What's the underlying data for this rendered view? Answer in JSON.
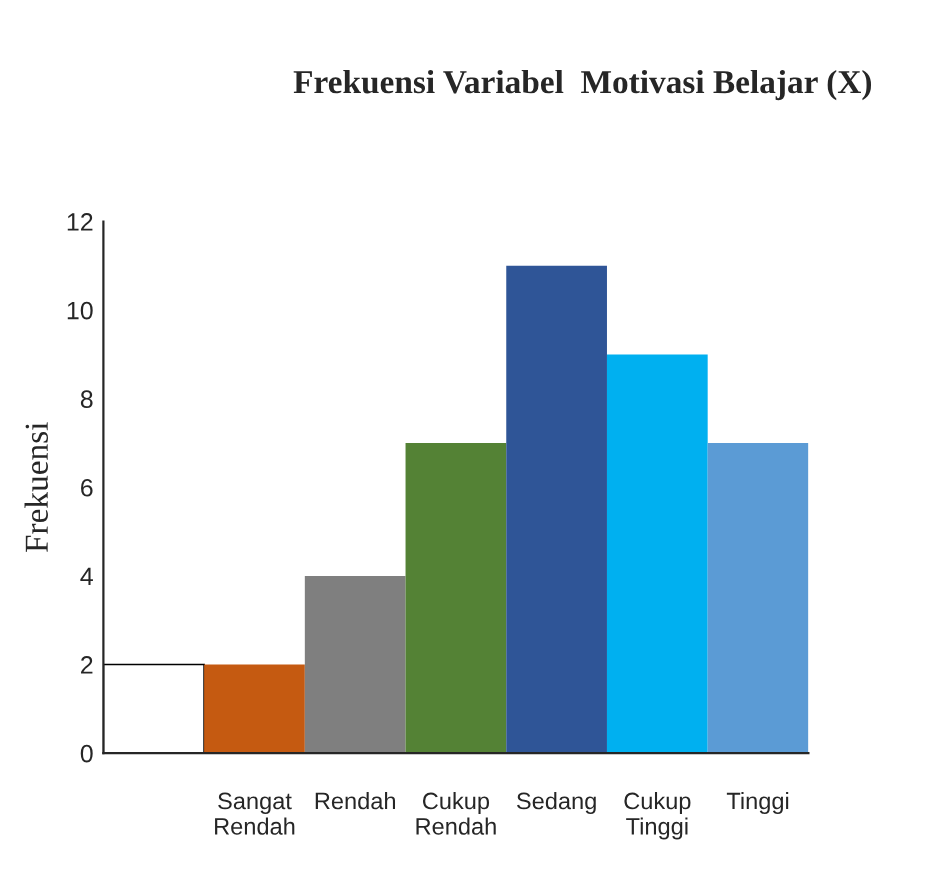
{
  "chart_data": {
    "type": "bar",
    "title": "Frekuensi Variabel  Motivasi Belajar (X)",
    "ylabel": "Frekuensi",
    "categories": [
      null,
      "Sangat\nRendah",
      "Rendah",
      "Cukup\nRendah",
      "Sedang",
      "Cukup\nTinggi",
      "Tinggi"
    ],
    "values": [
      2,
      2,
      4,
      7,
      11,
      9,
      7
    ],
    "colors": [
      "#ffffff",
      "#c55a11",
      "#7f7f7f",
      "#548235",
      "#2f5597",
      "#00b0f0",
      "#5b9bd5"
    ],
    "ylim": [
      0,
      12
    ],
    "yticks": [
      0,
      2,
      4,
      6,
      8,
      10,
      12
    ],
    "grid": false
  }
}
